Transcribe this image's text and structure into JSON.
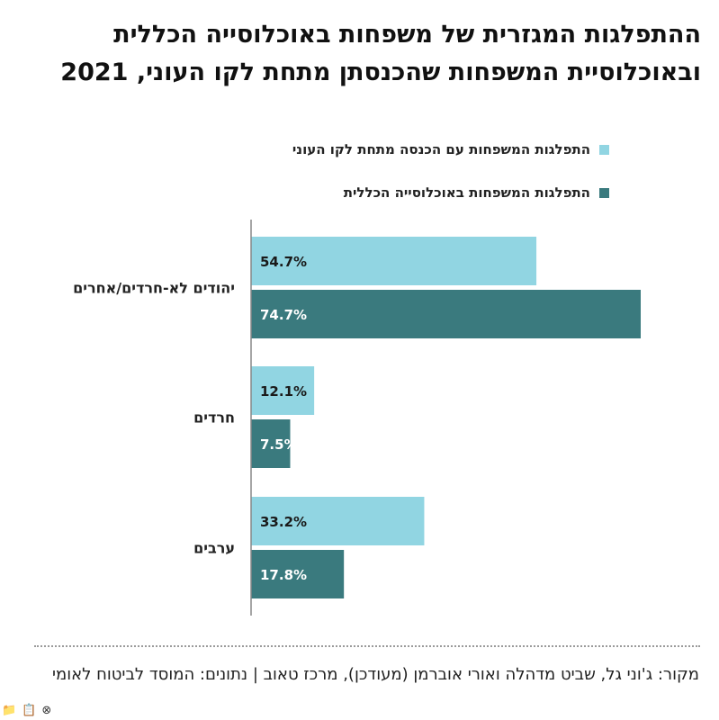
{
  "title": "ההתפלגות המגזרית של משפחות באוכלוסייה הכללית ובאוכלוסיית המשפחות שהכנסתן מתחת לקו העוני, 2021",
  "source": "מקור: ג'וני גל, שביט מדהלה ואורי אוברמן (מעודכן), מרכז טאוב | נתונים: המוסד לביטוח לאומי",
  "colors": {
    "poverty": "#91d5e2",
    "general": "#3a7a7e",
    "axis": "#888888"
  },
  "chart_data": {
    "type": "bar",
    "orientation": "horizontal",
    "categories": [
      "יהודים לא-חרדים/אחרים",
      "חרדים",
      "ערבים"
    ],
    "series": [
      {
        "name": "התפלגות המשפחות עם הכנסה מתחת לקו העוני",
        "values": [
          54.7,
          12.1,
          33.2
        ],
        "labels": [
          "54.7%",
          "12.1%",
          "33.2%"
        ]
      },
      {
        "name": "התפלגות המשפחות באוכלוסייה הכללית",
        "values": [
          74.7,
          7.5,
          17.8
        ],
        "labels": [
          "74.7%",
          "7.5%",
          "17.8%"
        ]
      }
    ],
    "unit": "%",
    "xlim": [
      0,
      80
    ],
    "grid": false,
    "legend_position": "top"
  },
  "toolbar": {
    "icons": [
      "folder-icon",
      "clipboard-icon",
      "close-circle-icon"
    ],
    "glyphs": [
      "📁",
      "📋",
      "⊗"
    ]
  }
}
